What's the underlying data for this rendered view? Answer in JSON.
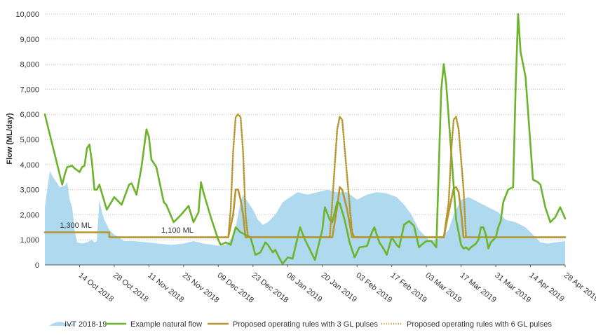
{
  "chart_data": {
    "type": "line",
    "title": "",
    "ylabel": "Flow (ML/day)",
    "xlabel": "",
    "ylim": [
      0,
      10000
    ],
    "yticks": [
      0,
      1000,
      2000,
      3000,
      4000,
      5000,
      6000,
      7000,
      8000,
      9000,
      10000
    ],
    "ytick_labels": [
      "0",
      "1,000",
      "2,000",
      "3,000",
      "4,000",
      "5,000",
      "6,000",
      "7,000",
      "8,000",
      "9,000",
      "10,000"
    ],
    "xlim": [
      "2018-09-30",
      "2019-04-28"
    ],
    "xticks": [
      {
        "date": "2018-10-14",
        "label": "14 Oct 2018"
      },
      {
        "date": "2018-10-28",
        "label": "28 Oct 2018"
      },
      {
        "date": "2018-11-11",
        "label": "11 Nov 2018"
      },
      {
        "date": "2018-11-25",
        "label": "25 Nov 2018"
      },
      {
        "date": "2018-12-09",
        "label": "09 Dec 2018"
      },
      {
        "date": "2018-12-23",
        "label": "23 Dec 2018"
      },
      {
        "date": "2019-01-06",
        "label": "06 Jan 2019"
      },
      {
        "date": "2019-01-20",
        "label": "20 Jan 2019"
      },
      {
        "date": "2019-02-03",
        "label": "03 Feb 2019"
      },
      {
        "date": "2019-02-17",
        "label": "17 Feb 2019"
      },
      {
        "date": "2019-03-03",
        "label": "03 Mar 2019"
      },
      {
        "date": "2019-03-17",
        "label": "17 Mar 2019"
      },
      {
        "date": "2019-03-31",
        "label": "31 Mar 2019"
      },
      {
        "date": "2019-04-14",
        "label": "14 Apr 2019"
      },
      {
        "date": "2019-04-28",
        "label": "28 Apr 2019"
      }
    ],
    "grid": {
      "horizontal": true,
      "style": "dotted"
    },
    "legend_position": "bottom",
    "annotations": [
      {
        "text": "1,300 ML",
        "date": "2018-10-06",
        "value": 1480
      },
      {
        "text": "1,100 ML",
        "date": "2018-11-16",
        "value": 1280
      }
    ],
    "series": [
      {
        "name": "IVT 2018-19",
        "style": "area",
        "color": "#aed9ee",
        "points": [
          [
            "2018-09-30",
            2300
          ],
          [
            "2018-10-01",
            3000
          ],
          [
            "2018-10-02",
            3750
          ],
          [
            "2018-10-03",
            3550
          ],
          [
            "2018-10-05",
            3250
          ],
          [
            "2018-10-06",
            3100
          ],
          [
            "2018-10-08",
            3150
          ],
          [
            "2018-10-09",
            3300
          ],
          [
            "2018-10-10",
            2600
          ],
          [
            "2018-10-11",
            2300
          ],
          [
            "2018-10-12",
            1400
          ],
          [
            "2018-10-13",
            900
          ],
          [
            "2018-10-15",
            850
          ],
          [
            "2018-10-17",
            900
          ],
          [
            "2018-10-19",
            1000
          ],
          [
            "2018-10-20",
            900
          ],
          [
            "2018-10-21",
            950
          ],
          [
            "2018-10-22",
            2600
          ],
          [
            "2018-10-23",
            2100
          ],
          [
            "2018-10-24",
            1800
          ],
          [
            "2018-10-26",
            1400
          ],
          [
            "2018-10-28",
            1200
          ],
          [
            "2018-10-30",
            1100
          ],
          [
            "2018-11-01",
            950
          ],
          [
            "2018-11-05",
            950
          ],
          [
            "2018-11-10",
            900
          ],
          [
            "2018-11-15",
            850
          ],
          [
            "2018-11-20",
            800
          ],
          [
            "2018-11-25",
            850
          ],
          [
            "2018-11-29",
            950
          ],
          [
            "2018-12-03",
            850
          ],
          [
            "2018-12-07",
            800
          ],
          [
            "2018-12-10",
            750
          ],
          [
            "2018-12-12",
            800
          ],
          [
            "2018-12-14",
            1000
          ],
          [
            "2018-12-16",
            1500
          ],
          [
            "2018-12-18",
            2500
          ],
          [
            "2018-12-19",
            2800
          ],
          [
            "2018-12-21",
            2500
          ],
          [
            "2018-12-23",
            2200
          ],
          [
            "2018-12-25",
            1800
          ],
          [
            "2018-12-27",
            1600
          ],
          [
            "2018-12-29",
            1700
          ],
          [
            "2019-01-01",
            2000
          ],
          [
            "2019-01-04",
            2500
          ],
          [
            "2019-01-07",
            2700
          ],
          [
            "2019-01-10",
            2900
          ],
          [
            "2019-01-14",
            2800
          ],
          [
            "2019-01-18",
            2900
          ],
          [
            "2019-01-22",
            3000
          ],
          [
            "2019-01-26",
            2900
          ],
          [
            "2019-01-30",
            2900
          ],
          [
            "2019-02-03",
            2600
          ],
          [
            "2019-02-07",
            2800
          ],
          [
            "2019-02-11",
            2900
          ],
          [
            "2019-02-15",
            2850
          ],
          [
            "2019-02-19",
            2700
          ],
          [
            "2019-02-22",
            2400
          ],
          [
            "2019-02-25",
            2000
          ],
          [
            "2019-02-28",
            1400
          ],
          [
            "2019-03-02",
            1200
          ],
          [
            "2019-03-04",
            1000
          ],
          [
            "2019-03-07",
            1000
          ],
          [
            "2019-03-09",
            1100
          ],
          [
            "2019-03-12",
            1400
          ],
          [
            "2019-03-14",
            2000
          ],
          [
            "2019-03-17",
            2600
          ],
          [
            "2019-03-20",
            2700
          ],
          [
            "2019-03-24",
            2500
          ],
          [
            "2019-03-28",
            2300
          ],
          [
            "2019-04-01",
            2100
          ],
          [
            "2019-04-04",
            1800
          ],
          [
            "2019-04-08",
            1700
          ],
          [
            "2019-04-12",
            1500
          ],
          [
            "2019-04-15",
            1200
          ],
          [
            "2019-04-18",
            900
          ],
          [
            "2019-04-21",
            850
          ],
          [
            "2019-04-24",
            900
          ],
          [
            "2019-04-28",
            950
          ]
        ]
      },
      {
        "name": "Example natural flow",
        "style": "line",
        "color": "#6bb42b",
        "points": [
          [
            "2018-09-30",
            6000
          ],
          [
            "2018-10-07",
            3200
          ],
          [
            "2018-10-08",
            3600
          ],
          [
            "2018-10-09",
            3900
          ],
          [
            "2018-10-11",
            3950
          ],
          [
            "2018-10-12",
            3850
          ],
          [
            "2018-10-14",
            3700
          ],
          [
            "2018-10-15",
            3900
          ],
          [
            "2018-10-16",
            3950
          ],
          [
            "2018-10-17",
            4650
          ],
          [
            "2018-10-18",
            4800
          ],
          [
            "2018-10-19",
            4100
          ],
          [
            "2018-10-20",
            3000
          ],
          [
            "2018-10-21",
            3000
          ],
          [
            "2018-10-22",
            3200
          ],
          [
            "2018-10-25",
            2200
          ],
          [
            "2018-10-28",
            2700
          ],
          [
            "2018-10-31",
            2400
          ],
          [
            "2018-11-03",
            3200
          ],
          [
            "2018-11-04",
            3250
          ],
          [
            "2018-11-06",
            2800
          ],
          [
            "2018-11-08",
            3900
          ],
          [
            "2018-11-10",
            5400
          ],
          [
            "2018-11-11",
            5100
          ],
          [
            "2018-11-12",
            4200
          ],
          [
            "2018-11-14",
            3900
          ],
          [
            "2018-11-17",
            2500
          ],
          [
            "2018-11-18",
            2400
          ],
          [
            "2018-11-21",
            1700
          ],
          [
            "2018-11-24",
            2000
          ],
          [
            "2018-11-27",
            2350
          ],
          [
            "2018-11-29",
            1700
          ],
          [
            "2018-12-01",
            2100
          ],
          [
            "2018-12-02",
            3300
          ],
          [
            "2018-12-03",
            2900
          ],
          [
            "2018-12-06",
            1900
          ],
          [
            "2018-12-09",
            1000
          ],
          [
            "2018-12-10",
            800
          ],
          [
            "2018-12-12",
            900
          ],
          [
            "2018-12-14",
            800
          ],
          [
            "2018-12-16",
            1500
          ],
          [
            "2018-12-18",
            1300
          ],
          [
            "2018-12-20",
            1200
          ],
          [
            "2018-12-22",
            1100
          ],
          [
            "2018-12-24",
            400
          ],
          [
            "2018-12-26",
            500
          ],
          [
            "2018-12-28",
            900
          ],
          [
            "2018-12-29",
            800
          ],
          [
            "2018-12-31",
            500
          ],
          [
            "2019-01-01",
            600
          ],
          [
            "2019-01-03",
            200
          ],
          [
            "2019-01-04",
            50
          ],
          [
            "2019-01-06",
            300
          ],
          [
            "2019-01-08",
            250
          ],
          [
            "2019-01-11",
            1500
          ],
          [
            "2019-01-13",
            1000
          ],
          [
            "2019-01-15",
            600
          ],
          [
            "2019-01-17",
            200
          ],
          [
            "2019-01-20",
            1400
          ],
          [
            "2019-01-21",
            2300
          ],
          [
            "2019-01-23",
            1800
          ],
          [
            "2019-01-24",
            1700
          ],
          [
            "2019-01-26",
            2500
          ],
          [
            "2019-01-27",
            2450
          ],
          [
            "2019-01-29",
            1800
          ],
          [
            "2019-01-31",
            900
          ],
          [
            "2019-02-02",
            300
          ],
          [
            "2019-02-04",
            700
          ],
          [
            "2019-02-07",
            750
          ],
          [
            "2019-02-09",
            1300
          ],
          [
            "2019-02-10",
            1500
          ],
          [
            "2019-02-12",
            900
          ],
          [
            "2019-02-14",
            600
          ],
          [
            "2019-02-15",
            400
          ],
          [
            "2019-02-17",
            1100
          ],
          [
            "2019-02-19",
            800
          ],
          [
            "2019-02-20",
            700
          ],
          [
            "2019-02-22",
            1600
          ],
          [
            "2019-02-24",
            1750
          ],
          [
            "2019-02-26",
            1550
          ],
          [
            "2019-02-28",
            700
          ],
          [
            "2019-03-01",
            800
          ],
          [
            "2019-03-03",
            950
          ],
          [
            "2019-03-05",
            950
          ],
          [
            "2019-03-07",
            700
          ],
          [
            "2019-03-09",
            7000
          ],
          [
            "2019-03-10",
            8000
          ],
          [
            "2019-03-11",
            7200
          ],
          [
            "2019-03-13",
            4500
          ],
          [
            "2019-03-15",
            1800
          ],
          [
            "2019-03-17",
            800
          ],
          [
            "2019-03-18",
            650
          ],
          [
            "2019-03-19",
            700
          ],
          [
            "2019-03-20",
            600
          ],
          [
            "2019-03-21",
            700
          ],
          [
            "2019-03-23",
            850
          ],
          [
            "2019-03-24",
            1000
          ],
          [
            "2019-03-25",
            1500
          ],
          [
            "2019-03-26",
            1500
          ],
          [
            "2019-03-27",
            1200
          ],
          [
            "2019-03-28",
            650
          ],
          [
            "2019-03-29",
            900
          ],
          [
            "2019-03-31",
            1100
          ],
          [
            "2019-04-01",
            1500
          ],
          [
            "2019-04-02",
            1750
          ],
          [
            "2019-04-03",
            2500
          ],
          [
            "2019-04-05",
            3000
          ],
          [
            "2019-04-07",
            3100
          ],
          [
            "2019-04-08",
            7000
          ],
          [
            "2019-04-09",
            10000
          ],
          [
            "2019-04-10",
            8500
          ],
          [
            "2019-04-12",
            7500
          ],
          [
            "2019-04-14",
            4800
          ],
          [
            "2019-04-15",
            3400
          ],
          [
            "2019-04-17",
            3300
          ],
          [
            "2019-04-18",
            3200
          ],
          [
            "2019-04-20",
            2300
          ],
          [
            "2019-04-22",
            1700
          ],
          [
            "2019-04-24",
            1900
          ],
          [
            "2019-04-26",
            2300
          ],
          [
            "2019-04-28",
            1850
          ]
        ]
      },
      {
        "name": "Proposed operating rules with 3 GL pulses",
        "style": "line",
        "color": "#b5962f",
        "points": [
          [
            "2018-09-30",
            1300
          ],
          [
            "2018-10-26",
            1300
          ],
          [
            "2018-10-26",
            1100
          ],
          [
            "2018-12-13",
            1100
          ],
          [
            "2018-12-15",
            2000
          ],
          [
            "2018-12-16",
            3000
          ],
          [
            "2018-12-17",
            3000
          ],
          [
            "2018-12-18",
            2600
          ],
          [
            "2018-12-19",
            2000
          ],
          [
            "2018-12-20",
            1100
          ],
          [
            "2019-01-24",
            1100
          ],
          [
            "2019-01-26",
            2300
          ],
          [
            "2019-01-27",
            3100
          ],
          [
            "2019-01-28",
            3000
          ],
          [
            "2019-01-30",
            2200
          ],
          [
            "2019-02-01",
            1100
          ],
          [
            "2019-03-10",
            1100
          ],
          [
            "2019-03-12",
            2100
          ],
          [
            "2019-03-14",
            3050
          ],
          [
            "2019-03-15",
            3100
          ],
          [
            "2019-03-16",
            2900
          ],
          [
            "2019-03-17",
            2100
          ],
          [
            "2019-03-18",
            1100
          ],
          [
            "2019-04-28",
            1100
          ]
        ]
      },
      {
        "name": "Proposed operating rules with 6 GL pulses",
        "style": "dotted",
        "color": "#b5962f",
        "points": [
          [
            "2018-12-13",
            1100
          ],
          [
            "2018-12-14",
            2200
          ],
          [
            "2018-12-15",
            4500
          ],
          [
            "2018-12-16",
            5900
          ],
          [
            "2018-12-17",
            6000
          ],
          [
            "2018-12-18",
            5900
          ],
          [
            "2018-12-19",
            4500
          ],
          [
            "2018-12-20",
            2000
          ],
          [
            "2018-12-21",
            1100
          ],
          [
            "2019-01-23",
            1100
          ],
          [
            "2019-01-24",
            2500
          ],
          [
            "2019-01-26",
            5400
          ],
          [
            "2019-01-27",
            5900
          ],
          [
            "2019-01-28",
            5800
          ],
          [
            "2019-01-30",
            3500
          ],
          [
            "2019-02-01",
            1300
          ],
          [
            "2019-02-02",
            1100
          ],
          [
            "2019-03-10",
            1100
          ],
          [
            "2019-03-12",
            2500
          ],
          [
            "2019-03-13",
            4500
          ],
          [
            "2019-03-14",
            5800
          ],
          [
            "2019-03-15",
            5900
          ],
          [
            "2019-03-16",
            5400
          ],
          [
            "2019-03-18",
            3000
          ],
          [
            "2019-03-19",
            1100
          ]
        ]
      }
    ]
  }
}
